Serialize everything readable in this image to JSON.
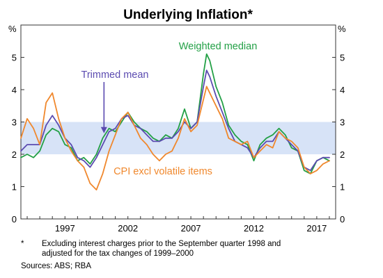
{
  "chart_data": {
    "type": "line",
    "title": "Underlying Inflation*",
    "y_unit_left": "%",
    "y_unit_right": "%",
    "ylim": [
      0,
      6
    ],
    "yticks": [
      0,
      1,
      2,
      3,
      4,
      5
    ],
    "xlim": [
      1993.5,
      2018.5
    ],
    "xticks": [
      1997,
      2002,
      2007,
      2012,
      2017
    ],
    "target_band": [
      2,
      3
    ],
    "grid": false,
    "series": [
      {
        "name": "Weighted median",
        "color": "#23a046",
        "x": [
          1993.5,
          1994,
          1994.5,
          1995,
          1995.5,
          1996,
          1996.5,
          1997,
          1997.5,
          1998,
          1998.5,
          1999,
          1999.5,
          2000,
          2000.5,
          2001,
          2001.5,
          2002,
          2002.5,
          2003,
          2003.5,
          2004,
          2004.5,
          2005,
          2005.5,
          2006,
          2006.5,
          2007,
          2007.5,
          2008,
          2008.25,
          2008.5,
          2009,
          2009.5,
          2010,
          2010.5,
          2011,
          2011.5,
          2012,
          2012.5,
          2013,
          2013.5,
          2014,
          2014.5,
          2015,
          2015.5,
          2016,
          2016.5,
          2017,
          2017.5,
          2018
        ],
        "values": [
          1.9,
          2.0,
          1.9,
          2.1,
          2.6,
          2.8,
          2.7,
          2.3,
          2.2,
          1.8,
          1.9,
          1.7,
          2.0,
          2.5,
          2.8,
          2.7,
          3.0,
          3.3,
          3.0,
          2.8,
          2.7,
          2.5,
          2.4,
          2.6,
          2.5,
          2.8,
          3.4,
          2.8,
          3.0,
          4.5,
          5.1,
          4.9,
          4.1,
          3.6,
          2.9,
          2.6,
          2.4,
          2.3,
          1.8,
          2.3,
          2.5,
          2.6,
          2.8,
          2.6,
          2.2,
          2.1,
          1.5,
          1.4,
          1.8,
          1.9,
          1.8
        ]
      },
      {
        "name": "Trimmed mean",
        "color": "#5b4bb0",
        "x": [
          1993.5,
          1994,
          1994.5,
          1995,
          1995.5,
          1996,
          1996.5,
          1997,
          1997.5,
          1998,
          1998.5,
          1999,
          1999.5,
          2000,
          2000.5,
          2001,
          2001.5,
          2002,
          2002.5,
          2003,
          2003.5,
          2004,
          2004.5,
          2005,
          2005.5,
          2006,
          2006.5,
          2007,
          2007.5,
          2008,
          2008.25,
          2008.5,
          2009,
          2009.5,
          2010,
          2010.5,
          2011,
          2011.5,
          2012,
          2012.5,
          2013,
          2013.5,
          2014,
          2014.5,
          2015,
          2015.5,
          2016,
          2016.5,
          2017,
          2017.5,
          2018
        ],
        "values": [
          2.1,
          2.3,
          2.3,
          2.3,
          2.9,
          3.2,
          2.9,
          2.5,
          2.3,
          1.9,
          1.8,
          1.6,
          1.9,
          2.3,
          2.7,
          2.8,
          3.1,
          3.2,
          2.9,
          2.8,
          2.6,
          2.4,
          2.4,
          2.5,
          2.5,
          2.7,
          3.0,
          2.8,
          3.0,
          4.1,
          4.6,
          4.4,
          3.8,
          3.3,
          2.8,
          2.4,
          2.3,
          2.2,
          1.9,
          2.2,
          2.4,
          2.4,
          2.7,
          2.5,
          2.3,
          2.1,
          1.6,
          1.5,
          1.8,
          1.9,
          1.9
        ]
      },
      {
        "name": "CPI excl volatile items",
        "color": "#f0882d",
        "x": [
          1993.5,
          1994,
          1994.5,
          1995,
          1995.5,
          1996,
          1996.5,
          1997,
          1997.5,
          1998,
          1998.5,
          1999,
          1999.5,
          2000,
          2000.5,
          2001,
          2001.5,
          2002,
          2002.5,
          2003,
          2003.5,
          2004,
          2004.5,
          2005,
          2005.5,
          2006,
          2006.5,
          2007,
          2007.5,
          2008,
          2008.25,
          2008.5,
          2009,
          2009.5,
          2010,
          2010.5,
          2011,
          2011.5,
          2012,
          2012.5,
          2013,
          2013.5,
          2014,
          2014.5,
          2015,
          2015.5,
          2016,
          2016.5,
          2017,
          2017.5,
          2018
        ],
        "values": [
          2.5,
          3.1,
          2.8,
          2.3,
          3.6,
          3.9,
          3.1,
          2.5,
          2.1,
          1.8,
          1.6,
          1.1,
          0.9,
          1.4,
          2.1,
          2.6,
          3.1,
          3.3,
          2.9,
          2.5,
          2.3,
          2.0,
          1.8,
          2.0,
          2.1,
          2.5,
          3.1,
          2.7,
          2.9,
          3.7,
          4.1,
          3.9,
          3.5,
          3.1,
          2.5,
          2.4,
          2.3,
          2.4,
          1.9,
          2.1,
          2.3,
          2.2,
          2.7,
          2.5,
          2.4,
          2.2,
          1.6,
          1.4,
          1.5,
          1.7,
          1.8
        ]
      }
    ],
    "annotations": [
      {
        "text": "Weighted median",
        "series": 0
      },
      {
        "text": "Trimmed mean",
        "series": 1,
        "arrow_to": [
          2000.1,
          2.65
        ]
      },
      {
        "text": "CPI excl volatile items",
        "series": 2
      }
    ]
  },
  "footnote": {
    "marker": "*",
    "text_line1": "Excluding interest charges prior to the September quarter 1998 and",
    "text_line2": "adjusted for the tax changes of 1999–2000"
  },
  "sources": "Sources: ABS; RBA"
}
